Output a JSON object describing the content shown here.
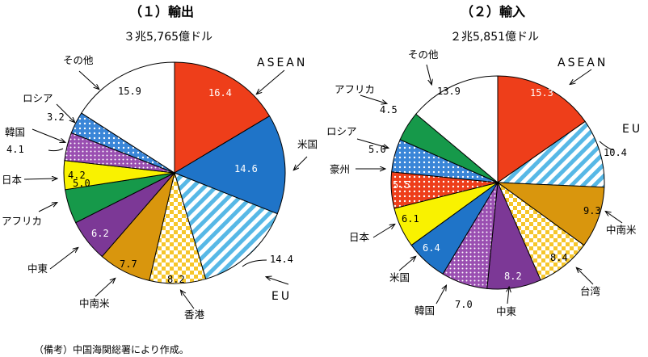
{
  "note": "（備考）中国海関総署により作成。",
  "colors": {
    "asean": "#ee3e1a",
    "us": "#1f74c8",
    "eu": "#57b8e6",
    "hongkong": "#f6c62b",
    "latam": "#d9960d",
    "mideast": "#7c3896",
    "africa": "#16994a",
    "japan": "#f9f200",
    "korea": "#9a4fb1",
    "russia": "#3a86d8",
    "other": "#ffffff",
    "taiwan": "#f6c62b",
    "australia": "#ee3e1a"
  },
  "chart_data": [
    {
      "type": "pie",
      "title": "（１）輸出",
      "subtitle": "３兆5,765億ドル",
      "slices": [
        {
          "label": "ASEAN",
          "value": 16.4,
          "value_text": "16.4",
          "color": "#ee3e1a",
          "pattern": "solid"
        },
        {
          "label": "米国",
          "value": 14.6,
          "value_text": "14.6",
          "color": "#1f74c8",
          "pattern": "solid"
        },
        {
          "label": "EU",
          "value": 14.4,
          "value_text": "14.4",
          "color": "#57b8e6",
          "pattern": "stripes"
        },
        {
          "label": "香港",
          "value": 8.2,
          "value_text": "8.2",
          "color": "#f6c62b",
          "pattern": "check"
        },
        {
          "label": "中南米",
          "value": 7.7,
          "value_text": "7.7",
          "color": "#d9960d",
          "pattern": "solid"
        },
        {
          "label": "中東",
          "value": 6.2,
          "value_text": "6.2",
          "color": "#7c3896",
          "pattern": "solid"
        },
        {
          "label": "アフリカ",
          "value": 5.0,
          "value_text": "5.0",
          "color": "#16994a",
          "pattern": "solid"
        },
        {
          "label": "日本",
          "value": 4.2,
          "value_text": "4.2",
          "color": "#f9f200",
          "pattern": "solid"
        },
        {
          "label": "韓国",
          "value": 4.1,
          "value_text": "4.1",
          "color": "#9a4fb1",
          "pattern": "dots"
        },
        {
          "label": "ロシア",
          "value": 3.2,
          "value_text": "3.2",
          "color": "#3a86d8",
          "pattern": "dots"
        },
        {
          "label": "その他",
          "value": 15.9,
          "value_text": "15.9",
          "color": "#ffffff",
          "pattern": "solid"
        }
      ]
    },
    {
      "type": "pie",
      "title": "（２）輸入",
      "subtitle": "２兆5,851億ドル",
      "slices": [
        {
          "label": "ASEAN",
          "value": 15.3,
          "value_text": "15.3",
          "color": "#ee3e1a",
          "pattern": "solid"
        },
        {
          "label": "EU",
          "value": 10.4,
          "value_text": "10.4",
          "color": "#57b8e6",
          "pattern": "stripes"
        },
        {
          "label": "中南米",
          "value": 9.3,
          "value_text": "9.3",
          "color": "#d9960d",
          "pattern": "solid"
        },
        {
          "label": "台湾",
          "value": 8.4,
          "value_text": "8.4",
          "color": "#f6c62b",
          "pattern": "check"
        },
        {
          "label": "中東",
          "value": 8.2,
          "value_text": "8.2",
          "color": "#7c3896",
          "pattern": "solid"
        },
        {
          "label": "韓国",
          "value": 7.0,
          "value_text": "7.0",
          "color": "#9a4fb1",
          "pattern": "dots"
        },
        {
          "label": "米国",
          "value": 6.4,
          "value_text": "6.4",
          "color": "#1f74c8",
          "pattern": "solid"
        },
        {
          "label": "日本",
          "value": 6.1,
          "value_text": "6.1",
          "color": "#f9f200",
          "pattern": "solid"
        },
        {
          "label": "豪州",
          "value": 5.5,
          "value_text": "5.5",
          "color": "#ee3e1a",
          "pattern": "dots"
        },
        {
          "label": "ロシア",
          "value": 5.0,
          "value_text": "5.0",
          "color": "#3a86d8",
          "pattern": "dots"
        },
        {
          "label": "アフリカ",
          "value": 4.5,
          "value_text": "4.5",
          "color": "#16994a",
          "pattern": "solid"
        },
        {
          "label": "その他",
          "value": 13.9,
          "value_text": "13.9",
          "color": "#ffffff",
          "pattern": "solid"
        }
      ]
    }
  ]
}
